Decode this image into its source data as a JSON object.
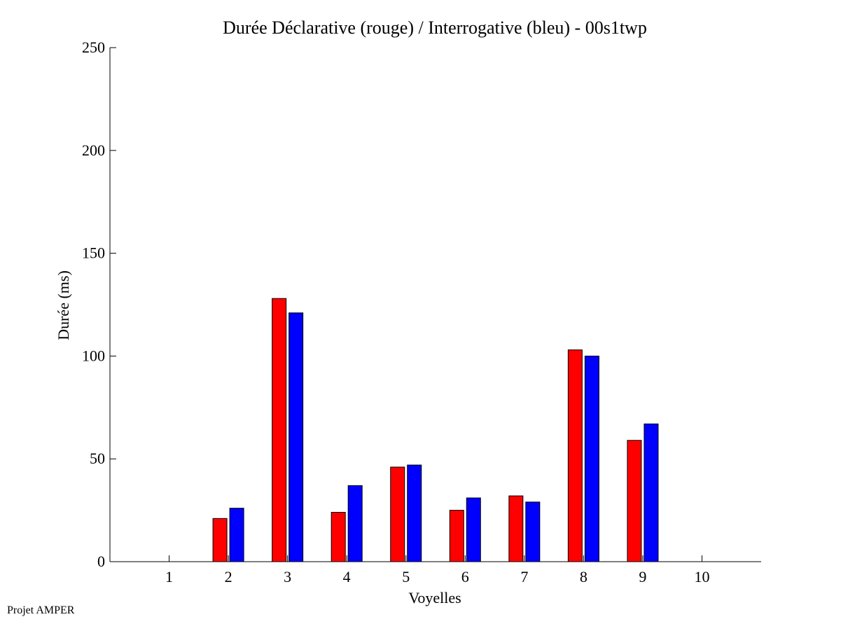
{
  "chart_data": {
    "type": "bar",
    "title": "Durée Déclarative (rouge) / Interrogative (bleu) - 00s1twp",
    "xlabel": "Voyelles",
    "ylabel": "Durée (ms)",
    "categories": [
      "1",
      "2",
      "3",
      "4",
      "5",
      "6",
      "7",
      "8",
      "9",
      "10"
    ],
    "xlim": [
      0,
      11
    ],
    "ylim": [
      0,
      250
    ],
    "yticks": [
      0,
      50,
      100,
      150,
      200,
      250
    ],
    "grid": false,
    "legend": "none",
    "series": [
      {
        "color": "#ff0000",
        "values": [
          0,
          21,
          128,
          24,
          46,
          25,
          32,
          103,
          59,
          0
        ]
      },
      {
        "color": "#0000ff",
        "values": [
          0,
          26,
          121,
          37,
          47,
          31,
          29,
          100,
          67,
          0
        ]
      }
    ]
  },
  "footer": {
    "note": "Projet AMPER"
  }
}
